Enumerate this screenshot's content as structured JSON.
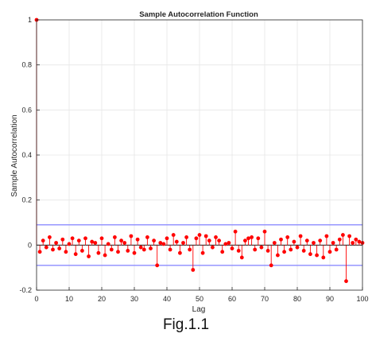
{
  "caption": "Fig.1.1",
  "chart_data": {
    "type": "stem",
    "title": "Sample Autocorrelation Function",
    "xlabel": "Lag",
    "ylabel": "Sample Autocorrelation",
    "xlim": [
      0,
      100
    ],
    "ylim": [
      -0.2,
      1
    ],
    "xticks": [
      0,
      10,
      20,
      30,
      40,
      50,
      60,
      70,
      80,
      90,
      100
    ],
    "yticks": [
      -0.2,
      0,
      0.2,
      0.4,
      0.6,
      0.8,
      1
    ],
    "grid": true,
    "confidence_bounds": [
      0.09,
      -0.09
    ],
    "colors": {
      "stem": "#ff0000",
      "bounds": "#8c8cff",
      "grid": "#e6e6e6",
      "zero": "#000000"
    },
    "x": [
      0,
      1,
      2,
      3,
      4,
      5,
      6,
      7,
      8,
      9,
      10,
      11,
      12,
      13,
      14,
      15,
      16,
      17,
      18,
      19,
      20,
      21,
      22,
      23,
      24,
      25,
      26,
      27,
      28,
      29,
      30,
      31,
      32,
      33,
      34,
      35,
      36,
      37,
      38,
      39,
      40,
      41,
      42,
      43,
      44,
      45,
      46,
      47,
      48,
      49,
      50,
      51,
      52,
      53,
      54,
      55,
      56,
      57,
      58,
      59,
      60,
      61,
      62,
      63,
      64,
      65,
      66,
      67,
      68,
      69,
      70,
      71,
      72,
      73,
      74,
      75,
      76,
      77,
      78,
      79,
      80,
      81,
      82,
      83,
      84,
      85,
      86,
      87,
      88,
      89,
      90,
      91,
      92,
      93,
      94,
      95,
      96,
      97,
      98,
      99,
      100
    ],
    "values": [
      1.0,
      -0.03,
      0.02,
      -0.01,
      0.035,
      -0.02,
      0.01,
      -0.015,
      0.025,
      -0.03,
      0.005,
      0.03,
      -0.04,
      0.02,
      -0.025,
      0.03,
      -0.05,
      0.015,
      0.01,
      -0.035,
      0.03,
      -0.045,
      0.005,
      -0.02,
      0.035,
      -0.03,
      0.02,
      0.01,
      -0.025,
      0.04,
      -0.035,
      0.025,
      -0.01,
      -0.02,
      0.035,
      -0.015,
      0.02,
      -0.09,
      0.01,
      0.005,
      0.03,
      -0.02,
      0.045,
      0.015,
      -0.035,
      0.01,
      0.035,
      -0.02,
      -0.11,
      0.03,
      0.045,
      -0.035,
      0.04,
      0.02,
      -0.01,
      0.035,
      0.02,
      -0.03,
      0.005,
      0.01,
      -0.015,
      0.06,
      -0.025,
      -0.055,
      0.02,
      0.03,
      0.035,
      -0.02,
      0.03,
      -0.01,
      0.06,
      -0.025,
      -0.09,
      0.01,
      -0.045,
      0.025,
      -0.03,
      0.035,
      -0.02,
      0.015,
      -0.01,
      0.04,
      -0.025,
      0.02,
      -0.04,
      0.01,
      -0.045,
      0.02,
      -0.055,
      0.04,
      -0.03,
      0.01,
      -0.02,
      0.025,
      0.045,
      -0.16,
      0.04,
      0.01,
      0.025,
      0.015,
      0.01
    ]
  }
}
